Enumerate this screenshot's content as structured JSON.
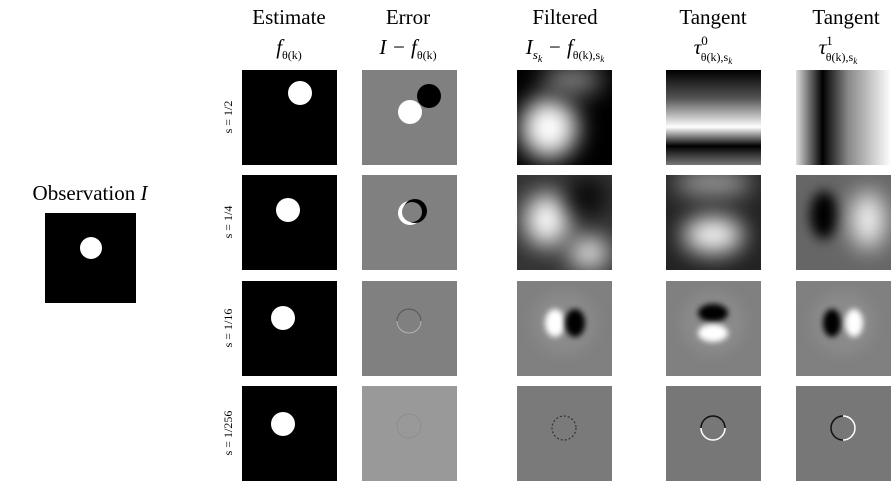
{
  "observation": {
    "label": "Observation",
    "variable": "I"
  },
  "columns": [
    {
      "title": "Estimate",
      "formula": [
        "f",
        "θ(k)"
      ]
    },
    {
      "title": "Error",
      "formula": [
        "I − f",
        "θ(k)"
      ]
    },
    {
      "title": "Filtered",
      "formula": [
        "I",
        "s",
        "k",
        " − f",
        "θ(k),s",
        "k"
      ]
    },
    {
      "title": "Tangent",
      "formula": [
        "τ",
        "0",
        "θ(k),s",
        "k"
      ]
    },
    {
      "title": "Tangent",
      "formula": [
        "τ",
        "1",
        "θ(k),s",
        "k"
      ]
    }
  ],
  "rows": [
    "s = 1/2",
    "s = 1/4",
    "s = 1/16",
    "s = 1/256"
  ]
}
